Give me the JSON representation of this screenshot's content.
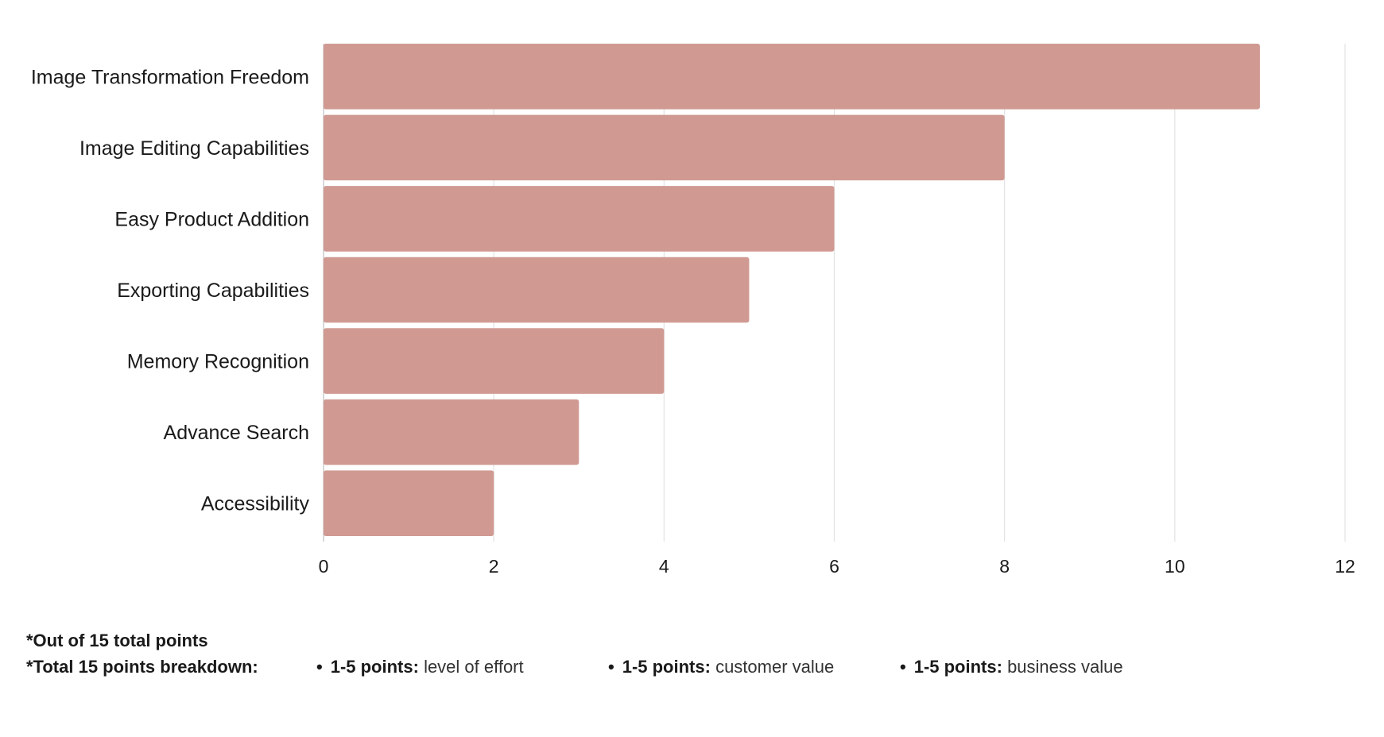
{
  "chart_data": {
    "type": "bar",
    "orientation": "horizontal",
    "categories": [
      "Image Transformation Freedom",
      "Image Editing Capabilities",
      "Easy Product Addition",
      "Exporting Capabilities",
      "Memory Recognition",
      "Advance Search",
      "Accessibility"
    ],
    "values": [
      11,
      8,
      6,
      5,
      4,
      3,
      2
    ],
    "title": "",
    "xlabel": "",
    "ylabel": "",
    "xlim": [
      0,
      12
    ],
    "xticks": [
      "0",
      "2",
      "4",
      "6",
      "8",
      "10",
      "12"
    ],
    "grid": "vertical",
    "legend": "none",
    "bar_color": "#d09a92"
  },
  "notes": {
    "out_of": "*Out of 15 total points",
    "breakdown_label": "*Total 15 points breakdown:",
    "items": [
      {
        "points": "1-5 points:",
        "desc": "level of effort"
      },
      {
        "points": "1-5 points:",
        "desc": "customer value"
      },
      {
        "points": "1-5 points:",
        "desc": "business value"
      }
    ]
  }
}
